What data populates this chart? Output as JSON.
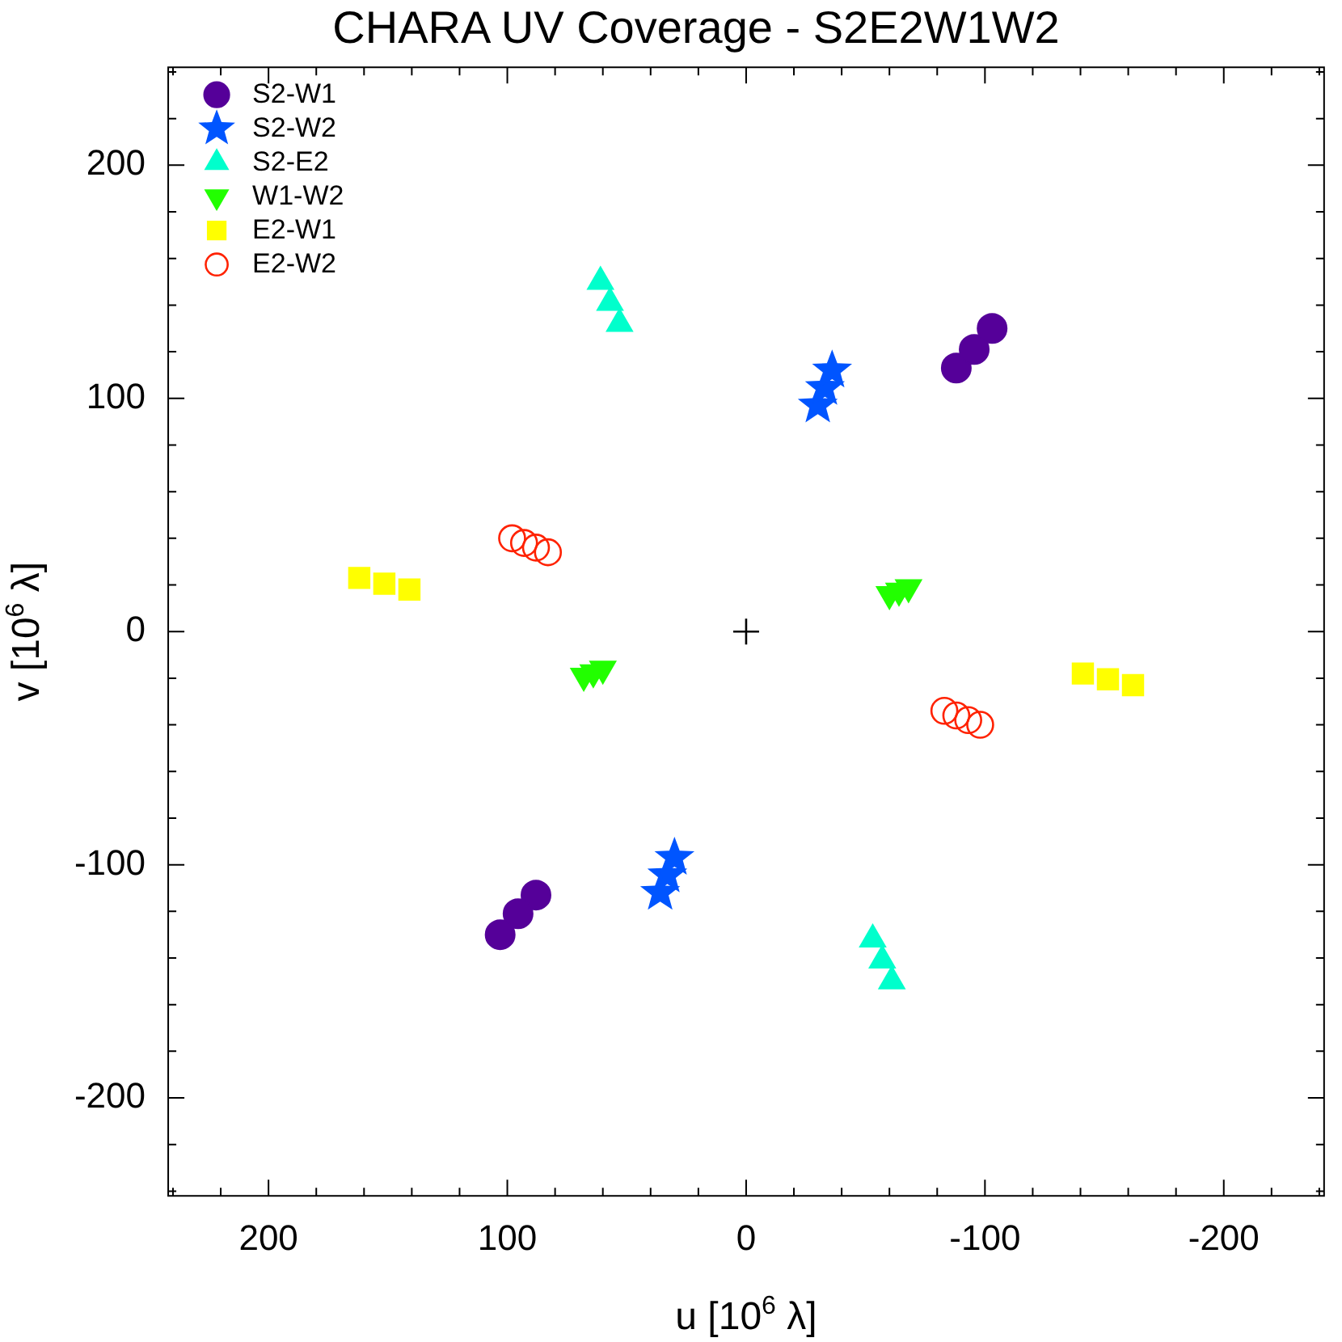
{
  "chart_data": {
    "type": "scatter",
    "title": "CHARA UV Coverage - S2E2W1W2",
    "xlabel": "u [10$^{6}$ λ]",
    "ylabel": "v [10$^{6}$ λ]",
    "xlim": [
      242,
      -242
    ],
    "ylim": [
      -242,
      242
    ],
    "xticks": [
      {
        "value": 240,
        "label": null
      },
      {
        "value": 220,
        "label": null
      },
      200,
      {
        "value": 180,
        "label": null
      },
      {
        "value": 160,
        "label": null
      },
      {
        "value": 140,
        "label": null
      },
      {
        "value": 120,
        "label": null
      },
      100,
      {
        "value": 80,
        "label": null
      },
      {
        "value": 60,
        "label": null
      },
      {
        "value": 40,
        "label": null
      },
      {
        "value": 20,
        "label": null
      },
      0,
      {
        "value": -20,
        "label": null
      },
      {
        "value": -40,
        "label": null
      },
      {
        "value": -60,
        "label": null
      },
      {
        "value": -80,
        "label": null
      },
      -100,
      {
        "value": -120,
        "label": null
      },
      {
        "value": -140,
        "label": null
      },
      {
        "value": -160,
        "label": null
      },
      {
        "value": -180,
        "label": null
      },
      -200,
      {
        "value": -220,
        "label": null
      },
      {
        "value": -240,
        "label": null
      }
    ],
    "yticks": [
      {
        "value": -240,
        "label": null
      },
      {
        "value": -220,
        "label": null
      },
      -200,
      {
        "value": -180,
        "label": null
      },
      {
        "value": -160,
        "label": null
      },
      {
        "value": -140,
        "label": null
      },
      {
        "value": -120,
        "label": null
      },
      -100,
      {
        "value": -80,
        "label": null
      },
      {
        "value": -60,
        "label": null
      },
      {
        "value": -40,
        "label": null
      },
      {
        "value": -20,
        "label": null
      },
      0,
      {
        "value": 20,
        "label": null
      },
      {
        "value": 40,
        "label": null
      },
      {
        "value": 60,
        "label": null
      },
      {
        "value": 80,
        "label": null
      },
      100,
      {
        "value": 120,
        "label": null
      },
      {
        "value": 140,
        "label": null
      },
      {
        "value": 160,
        "label": null
      },
      {
        "value": 180,
        "label": null
      },
      200,
      {
        "value": 220,
        "label": null
      },
      {
        "value": 240,
        "label": null
      }
    ],
    "grid": false,
    "legend": "top left",
    "series": [
      {
        "name": "S2-W1",
        "color": "#550099",
        "marker": "circle",
        "x": [
          -88,
          -95.5,
          -103,
          88,
          95.5,
          103
        ],
        "values": [
          113,
          121,
          130,
          -113,
          -121,
          -130
        ]
      },
      {
        "name": "S2-W2",
        "color": "#0055ff",
        "marker": "star",
        "x": [
          -30,
          -33,
          -36,
          30,
          33,
          36
        ],
        "values": [
          97,
          104.5,
          112,
          -97,
          -104.5,
          -112
        ]
      },
      {
        "name": "S2-E2",
        "color": "#00ffcc",
        "marker": "triangle",
        "x": [
          61,
          57,
          53,
          -61,
          -57,
          -53
        ],
        "values": [
          150,
          141,
          132,
          -150,
          -141,
          -132
        ]
      },
      {
        "name": "W1-W2",
        "color": "#22ff00",
        "marker": "triangle_down",
        "x": [
          -60,
          -64,
          -68,
          60,
          64,
          68
        ],
        "values": [
          16,
          17.5,
          19,
          -16,
          -17.5,
          -19
        ]
      },
      {
        "name": "E2-W1",
        "color": "#ffff00",
        "marker": "square",
        "x": [
          162,
          151.5,
          141,
          -162,
          -151.5,
          -141
        ],
        "values": [
          23,
          20.5,
          18,
          -23,
          -20.5,
          -18
        ]
      },
      {
        "name": "E2-W2",
        "color": "#ff2200",
        "marker": "open_circle",
        "x": [
          98,
          93,
          88,
          83,
          -98,
          -93,
          -88,
          -83
        ],
        "values": [
          40,
          38,
          36,
          34,
          -40,
          -38,
          -36,
          -34
        ]
      },
      {
        "color": "#000000",
        "marker": "cross",
        "x": [
          0
        ],
        "values": [
          0
        ]
      }
    ]
  }
}
